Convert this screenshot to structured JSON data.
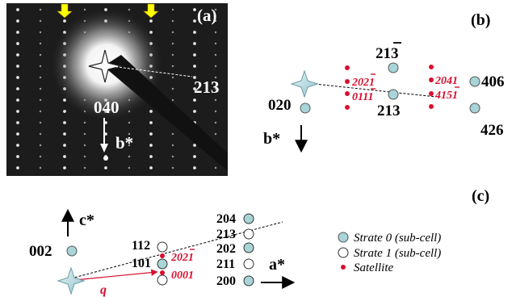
{
  "panels": {
    "a": {
      "tag": "(a)",
      "label_213": "213",
      "label_040": "040",
      "label_bstar": "b*"
    },
    "b": {
      "tag": "(b)",
      "labels": {
        "l213bar": "21",
        "l213bar_digit": "3",
        "l213": "213",
        "l020": "020",
        "l406": "406",
        "l426": "426",
        "bstar": "b*"
      },
      "satellites": {
        "s2021_a": "202",
        "s2021_b": "1",
        "s0111_a": "011",
        "s0111_b": "1",
        "s2041": "2041",
        "s4151_a": "415",
        "s4151_b": "1"
      }
    },
    "c": {
      "tag": "(c)",
      "labels": {
        "cstar": "c*",
        "astar": "a*",
        "l002": "002",
        "l112": "112",
        "l101": "101",
        "l204": "204",
        "l213": "213",
        "l202": "202",
        "l211": "211",
        "l200": "200",
        "q": "q"
      },
      "satellites": {
        "s2021_a": "202",
        "s2021_b": "1",
        "s0001": "0001"
      }
    }
  },
  "legend": {
    "strate0": "Strate 0 (sub-cell)",
    "strate1": "Strate 1 (sub-cell)",
    "satellite": "Satellite"
  },
  "colors": {
    "strate0_fill": "#a9d4d8",
    "satellite": "#d8102e",
    "arrow_yellow": "#ffff00"
  }
}
